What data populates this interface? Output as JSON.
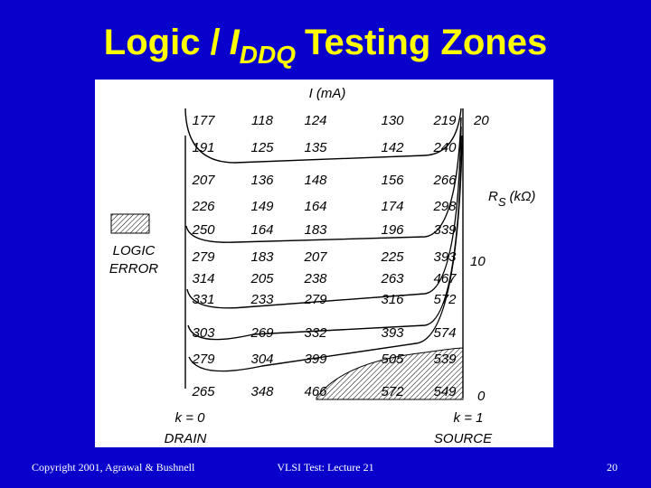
{
  "header": {
    "title": {
      "prefix": "Logic /",
      "symbol": "I",
      "subscript": "DDQ",
      "suffix": "Testing Zones"
    }
  },
  "figure": {
    "current_label": "I (mA)",
    "resistance_label": {
      "symbol": "R",
      "subscript": "S",
      "unit": "(kΩ)"
    },
    "resistance_ticks": [
      "20",
      "10",
      "0"
    ],
    "logic_error": [
      "LOGIC",
      "ERROR"
    ],
    "left_end": {
      "k": "k = 0",
      "name": "DRAIN"
    },
    "right_end": {
      "k": "k = 1",
      "name": "SOURCE"
    },
    "table": {
      "rows": [
        [
          177,
          118,
          124,
          130,
          219
        ],
        [
          191,
          125,
          135,
          142,
          240
        ],
        [
          207,
          136,
          148,
          156,
          266
        ],
        [
          226,
          149,
          164,
          174,
          298
        ],
        [
          250,
          164,
          183,
          196,
          339
        ],
        [
          279,
          183,
          207,
          225,
          393
        ],
        [
          314,
          205,
          238,
          263,
          467
        ],
        [
          331,
          233,
          279,
          316,
          572
        ],
        [
          303,
          269,
          332,
          393,
          574
        ],
        [
          279,
          304,
          399,
          505,
          539
        ],
        [
          265,
          348,
          466,
          572,
          549
        ]
      ]
    }
  },
  "footer": {
    "copyright": "Copyright 2001, Agrawal & Bushnell",
    "course": "VLSI Test: Lecture 21",
    "page": "20"
  }
}
